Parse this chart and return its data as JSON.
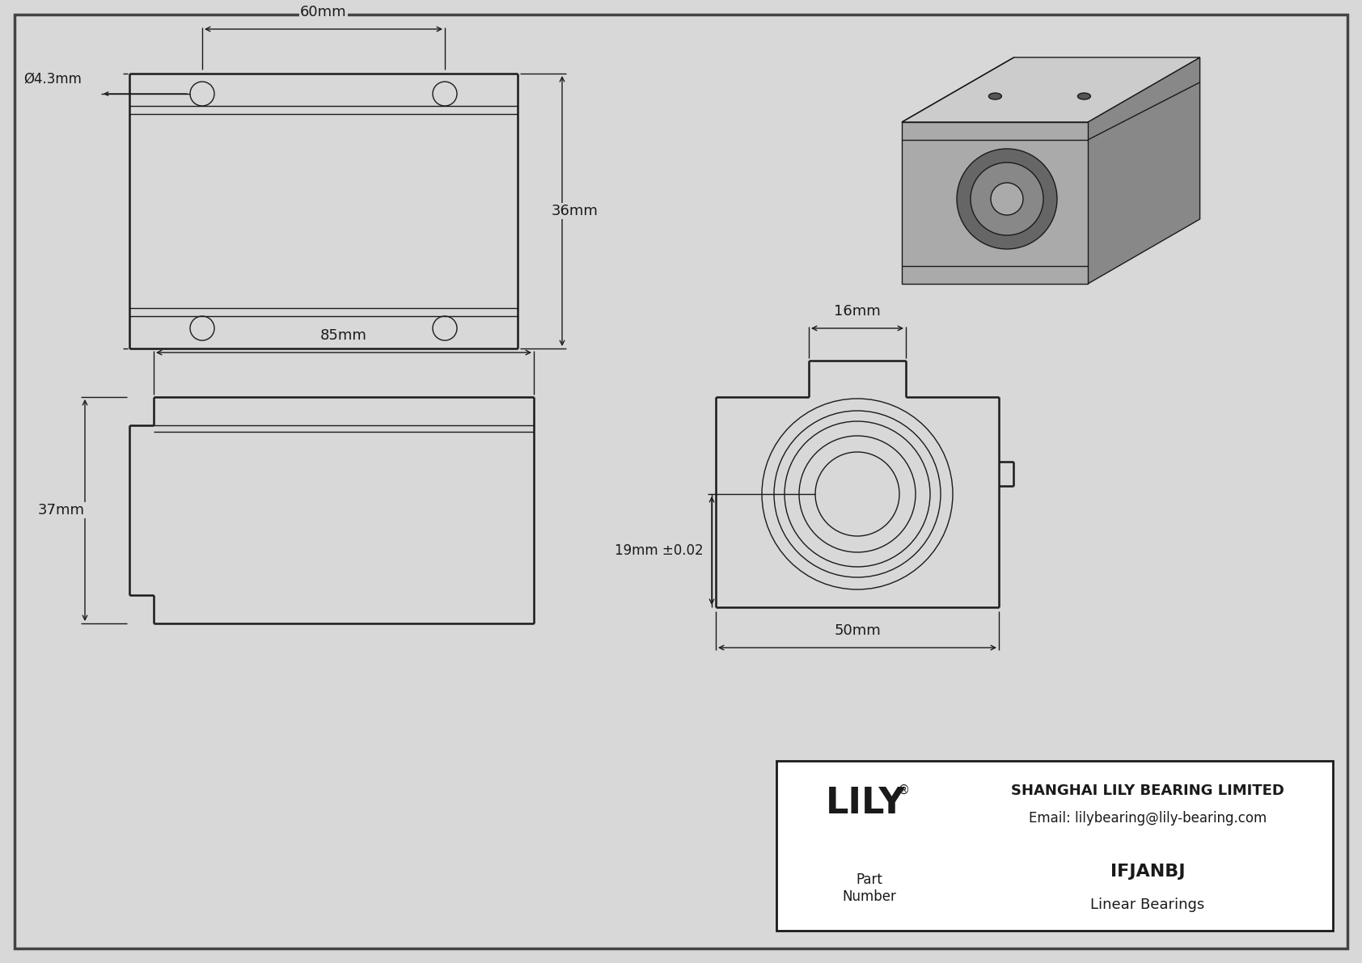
{
  "bg_color": "#d8d8d8",
  "line_color": "#1a1a1a",
  "title_company": "SHANGHAI LILY BEARING LIMITED",
  "title_email": "Email: lilybearing@lily-bearing.com",
  "part_number": "IFJANBJ",
  "part_type": "Linear Bearings",
  "brand": "LILY",
  "dim_top_width": "60mm",
  "dim_top_height": "36mm",
  "dim_top_hole": "Ø4.3mm",
  "dim_side_width": "85mm",
  "dim_side_height": "37mm",
  "dim_front_width": "50mm",
  "dim_front_height": "19mm ±0.02",
  "dim_front_top": "16mm"
}
